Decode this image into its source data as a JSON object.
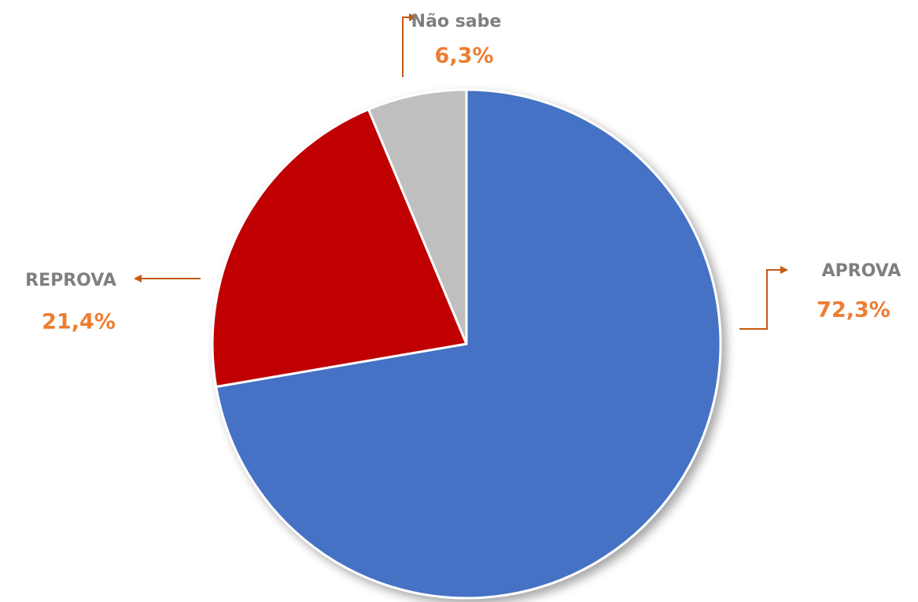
{
  "chart_data": {
    "type": "pie",
    "categories": [
      "APROVA",
      "REPROVA",
      "Não sabe"
    ],
    "values": [
      72.3,
      21.4,
      6.3
    ],
    "value_labels": [
      "72,3%",
      "21,4%",
      "6,3%"
    ],
    "colors": [
      "#4472c4",
      "#c00000",
      "#bfbfbf"
    ]
  }
}
